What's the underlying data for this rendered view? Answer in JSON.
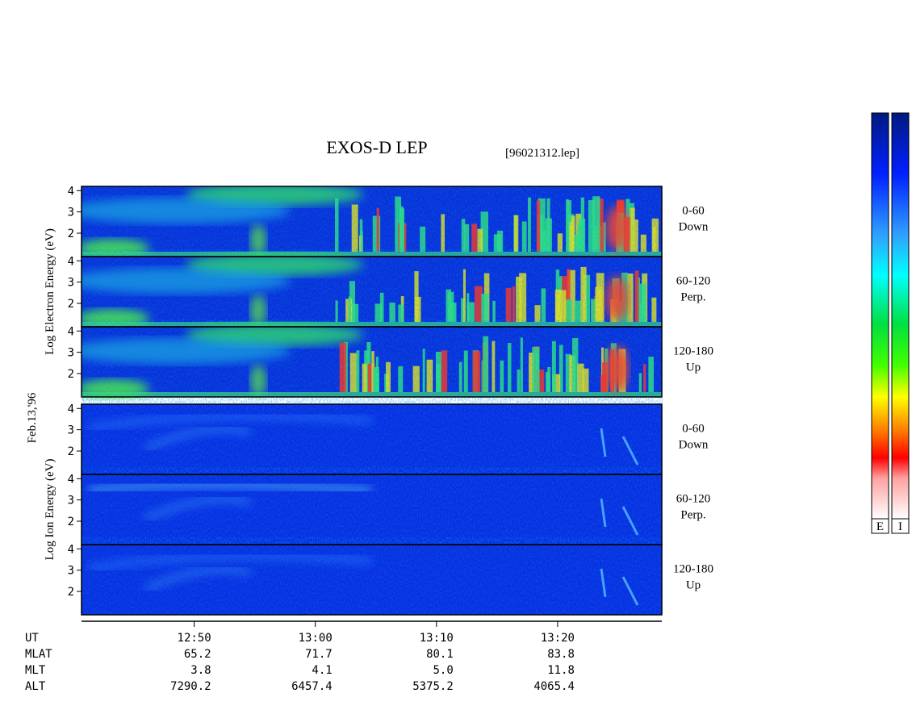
{
  "chart_data": {
    "type": "spectrogram",
    "title": "EXOS-D LEP",
    "file": "[96021312.lep]",
    "date": "Feb.13,'96",
    "groups": [
      {
        "ylabel": "Log Electron Energy (eV)",
        "panels": [
          [
            "0-60",
            "Down"
          ],
          [
            "60-120",
            "Perp."
          ],
          [
            "120-180",
            "Up"
          ]
        ]
      },
      {
        "ylabel": "Log Ion Energy (eV)",
        "panels": [
          [
            "0-60",
            "Down"
          ],
          [
            "60-120",
            "Perp."
          ],
          [
            "120-180",
            "Up"
          ]
        ]
      }
    ],
    "ylim": [
      0.9,
      4.2
    ],
    "yticks": [
      2,
      3,
      4
    ],
    "xlim": [
      760.7,
      808.6
    ],
    "xticks": [
      {
        "value": 770,
        "label": "12:50"
      },
      {
        "value": 780,
        "label": "13:00"
      },
      {
        "value": 790,
        "label": "13:10"
      },
      {
        "value": 800,
        "label": "13:20"
      }
    ],
    "x_label": "UT",
    "ephemeris": [
      {
        "name": "MLAT",
        "values": [
          "65.2",
          "71.7",
          "80.1",
          "83.8"
        ]
      },
      {
        "name": "MLT",
        "values": [
          "3.8",
          "4.1",
          "5.0",
          "11.8"
        ]
      },
      {
        "name": "ALT",
        "values": [
          "7290.2",
          "6457.4",
          "5375.2",
          "4065.4"
        ]
      }
    ],
    "colorbar_labels": [
      "E",
      "I"
    ]
  }
}
